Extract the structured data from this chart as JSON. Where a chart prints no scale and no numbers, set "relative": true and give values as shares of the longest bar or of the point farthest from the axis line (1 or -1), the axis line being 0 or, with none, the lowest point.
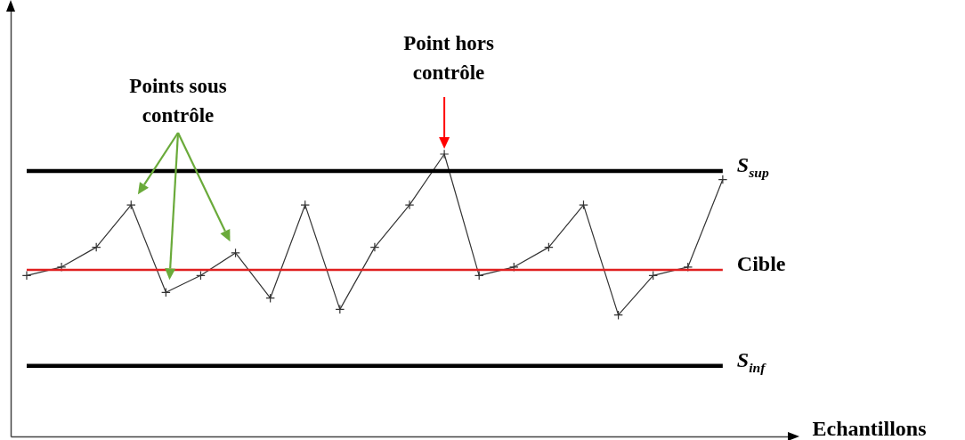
{
  "chart_data": {
    "type": "line",
    "relative": true,
    "xlabel": "Echantillons",
    "marker": "cross",
    "grid": false,
    "categories": [
      null,
      null,
      null,
      null,
      null,
      null,
      null,
      null,
      null,
      null,
      null,
      null,
      null,
      null,
      null,
      null,
      null,
      null,
      null,
      null,
      null
    ],
    "series": [
      {
        "color": "#333333",
        "values": [
          0.57,
          0.6,
          0.67,
          0.82,
          0.51,
          0.57,
          0.65,
          0.49,
          0.82,
          0.45,
          0.67,
          0.82,
          1,
          0.57,
          0.6,
          0.67,
          0.82,
          0.43,
          0.57,
          0.6,
          0.91
        ]
      }
    ],
    "ref_lines": [
      {
        "axis": "y",
        "value": 0.94,
        "label": "S$_{sup}$",
        "color": "#000000"
      },
      {
        "axis": "y",
        "value": 0.59,
        "label": "Cible",
        "color": "#e02020"
      },
      {
        "axis": "y",
        "value": 0.25,
        "label": "S$_{inf}$",
        "color": "#000000"
      }
    ],
    "annotations": [
      "Points sous contrôle",
      "Point hors contrôle"
    ]
  }
}
